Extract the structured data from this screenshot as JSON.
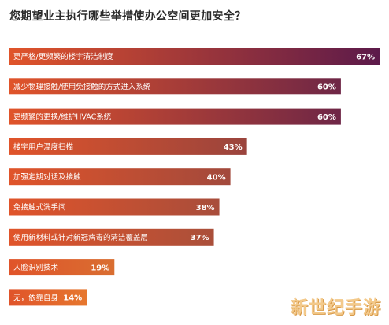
{
  "title": "您期望业主执行哪些举措使办公空间更加安全？",
  "watermark": "新世纪手游",
  "colors": {
    "bar_start": "#e0542a",
    "bar_end_high": "#5c1a4a",
    "bar_end_low": "#e6772e",
    "text": "#ffffff"
  },
  "chart_data": {
    "type": "bar",
    "orientation": "horizontal",
    "categories": [
      "更严格/更频繁的楼宇清洁制度",
      "减少物理接触/使用免接触的方式进入系统",
      "更频繁的更换/维护HVAC系统",
      "楼宇用户温度扫描",
      "加强定期对话及接触",
      "免接触式洗手间",
      "使用新材料或针对新冠病毒的清洁覆盖层",
      "人脸识别技术",
      "无，依靠自身"
    ],
    "values": [
      67,
      60,
      60,
      43,
      40,
      38,
      37,
      19,
      14
    ],
    "value_labels": [
      "67%",
      "60%",
      "60%",
      "43%",
      "40%",
      "38%",
      "37%",
      "19%",
      "14%"
    ],
    "unit": "%",
    "xlim": [
      0,
      67
    ]
  }
}
